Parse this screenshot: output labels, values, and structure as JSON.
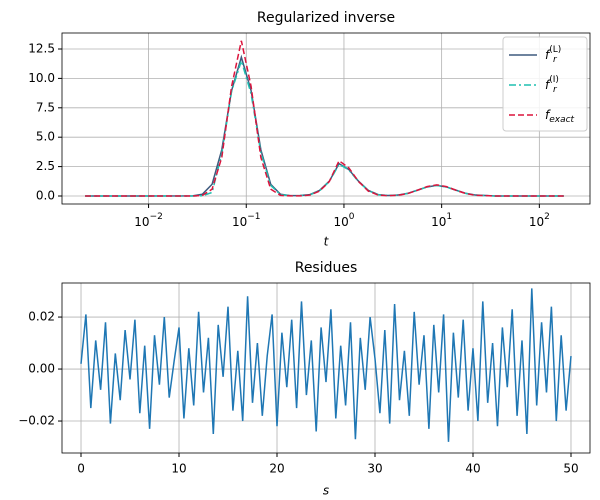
{
  "chart_data": [
    {
      "type": "line",
      "title": "Regularized inverse",
      "xlabel": "t",
      "xscale": "log",
      "xlim": [
        0.0013,
        330
      ],
      "ylim": [
        -0.68,
        13.86
      ],
      "xticks": [
        {
          "value": 0.01,
          "label": "10",
          "exponent": "−2"
        },
        {
          "value": 0.1,
          "label": "10",
          "exponent": "−1"
        },
        {
          "value": 1,
          "label": "10",
          "exponent": "0"
        },
        {
          "value": 10,
          "label": "10",
          "exponent": "1"
        },
        {
          "value": 100,
          "label": "10",
          "exponent": "2"
        }
      ],
      "yticks": [
        {
          "value": 0,
          "label": "0.0"
        },
        2.5,
        {
          "value": 5,
          "label": "5.0"
        },
        7.5,
        {
          "value": 10,
          "label": "10.0"
        },
        12.5
      ],
      "grid": true,
      "legend": "upper right",
      "x": [
        0.00224,
        0.00891,
        0.0282,
        0.0355,
        0.0447,
        0.0562,
        0.0708,
        0.0891,
        0.112,
        0.141,
        0.178,
        0.224,
        0.282,
        0.355,
        0.447,
        0.562,
        0.708,
        0.891,
        1.12,
        1.41,
        1.78,
        2.24,
        2.82,
        3.55,
        4.47,
        5.62,
        7.08,
        8.91,
        11.2,
        14.1,
        17.8,
        22.4,
        35.5,
        70.8,
        178
      ],
      "series": [
        {
          "name": "f",
          "subscript": "r",
          "superscript": "(L)",
          "color": "#3e5a7e",
          "linestyle": "solid",
          "values": [
            0,
            0,
            0.01,
            0.15,
            1.0,
            3.94,
            8.97,
            11.8,
            8.97,
            3.94,
            1.0,
            0.15,
            0.03,
            0.04,
            0.12,
            0.47,
            1.26,
            2.75,
            2.26,
            1.26,
            0.47,
            0.12,
            0.04,
            0.08,
            0.22,
            0.49,
            0.77,
            0.9,
            0.77,
            0.49,
            0.22,
            0.08,
            0,
            0,
            0
          ]
        },
        {
          "name": "f",
          "subscript": "r",
          "superscript": "(I)",
          "color": "#1fbfb0",
          "linestyle": "dashdot",
          "values": [
            0,
            0,
            0,
            0.02,
            0.3,
            3.6,
            8.9,
            11.5,
            8.7,
            3.7,
            0.9,
            0.12,
            0.02,
            0.03,
            0.1,
            0.44,
            1.22,
            2.7,
            2.22,
            1.22,
            0.45,
            0.11,
            0.04,
            0.07,
            0.21,
            0.48,
            0.76,
            0.9,
            0.76,
            0.48,
            0.21,
            0.07,
            0,
            0,
            0
          ]
        },
        {
          "name": "f",
          "subscript": "exact",
          "color": "#dc143c",
          "linestyle": "dashed",
          "values": [
            0,
            0,
            0,
            0.05,
            0.58,
            3.29,
            9.33,
            13.2,
            9.33,
            3.29,
            0.58,
            0.05,
            0.01,
            0.01,
            0.08,
            0.41,
            1.23,
            3.0,
            2.4,
            1.23,
            0.41,
            0.08,
            0.02,
            0.06,
            0.2,
            0.48,
            0.8,
            0.95,
            0.8,
            0.48,
            0.2,
            0.06,
            0,
            0,
            0
          ]
        }
      ]
    },
    {
      "type": "line",
      "title": "Residues",
      "xlabel": "s",
      "xlim": [
        -1.94,
        51.94
      ],
      "ylim": [
        -0.0323,
        0.0331
      ],
      "xticks": [
        0,
        10,
        20,
        30,
        40,
        50
      ],
      "yticks": [
        {
          "value": -0.02,
          "label": "−0.02"
        },
        {
          "value": 0,
          "label": "0.00"
        },
        0.02
      ],
      "grid": true,
      "x": [
        0,
        0.5,
        1,
        1.5,
        2,
        2.5,
        3,
        3.5,
        4,
        4.5,
        5,
        5.5,
        6,
        6.5,
        7,
        7.5,
        8,
        8.5,
        9,
        9.5,
        10,
        10.5,
        11,
        11.5,
        12,
        12.5,
        13,
        13.5,
        14,
        14.5,
        15,
        15.5,
        16,
        16.5,
        17,
        17.5,
        18,
        18.5,
        19,
        19.5,
        20,
        20.5,
        21,
        21.5,
        22,
        22.5,
        23,
        23.5,
        24,
        24.5,
        25,
        25.5,
        26,
        26.5,
        27,
        27.5,
        28,
        28.5,
        29,
        29.5,
        30,
        30.5,
        31,
        31.5,
        32,
        32.5,
        33,
        33.5,
        34,
        34.5,
        35,
        35.5,
        36,
        36.5,
        37,
        37.5,
        38,
        38.5,
        39,
        39.5,
        40,
        40.5,
        41,
        41.5,
        42,
        42.5,
        43,
        43.5,
        44,
        44.5,
        45,
        45.5,
        46,
        46.5,
        47,
        47.5,
        48,
        48.5,
        49,
        49.5,
        50
      ],
      "series": [
        {
          "color": "#1f77b4",
          "linestyle": "solid",
          "values": [
            0.002,
            0.021,
            -0.015,
            0.011,
            -0.008,
            0.018,
            -0.021,
            0.006,
            -0.012,
            0.015,
            -0.004,
            0.019,
            -0.017,
            0.009,
            -0.023,
            0.013,
            -0.006,
            0.02,
            -0.011,
            0.003,
            0.016,
            -0.019,
            0.008,
            -0.014,
            0.022,
            -0.009,
            0.012,
            -0.025,
            0.017,
            -0.003,
            0.024,
            -0.016,
            0.007,
            -0.02,
            0.028,
            -0.013,
            0.01,
            -0.018,
            0.005,
            0.021,
            -0.022,
            0.014,
            -0.007,
            0.019,
            -0.015,
            0.026,
            -0.01,
            0.011,
            -0.024,
            0.016,
            -0.005,
            0.023,
            -0.019,
            0.009,
            -0.014,
            0.018,
            -0.027,
            0.012,
            -0.008,
            0.02,
            0.004,
            -0.017,
            0.015,
            -0.021,
            0.025,
            -0.012,
            0.007,
            -0.018,
            0.022,
            -0.006,
            0.013,
            -0.023,
            0.017,
            -0.009,
            0.021,
            -0.028,
            0.014,
            -0.011,
            0.019,
            -0.016,
            0.008,
            -0.02,
            0.026,
            -0.013,
            0.01,
            -0.022,
            0.016,
            -0.007,
            0.023,
            -0.018,
            0.011,
            -0.025,
            0.031,
            -0.014,
            0.018,
            -0.009,
            0.024,
            -0.02,
            0.013,
            -0.016,
            0.005
          ]
        }
      ]
    }
  ]
}
